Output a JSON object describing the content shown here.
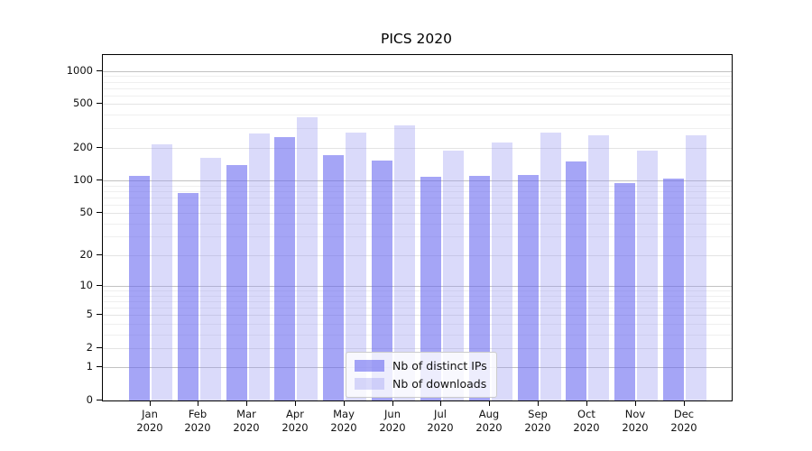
{
  "title": "PICS 2020",
  "axes": {
    "y_tick_labels": [
      "0",
      "1",
      "2",
      "5",
      "10",
      "20",
      "50",
      "100",
      "200",
      "500",
      "1000"
    ],
    "x_tick_labels": [
      "Jan 2020",
      "Feb 2020",
      "Mar 2020",
      "Apr 2020",
      "May 2020",
      "Jun 2020",
      "Jul 2020",
      "Aug 2020",
      "Sep 2020",
      "Oct 2020",
      "Nov 2020",
      "Dec 2020"
    ]
  },
  "legend": {
    "items": [
      "Nb of distinct IPs",
      "Nb of downloads"
    ]
  },
  "colors": {
    "bar_dark_apparent": "#a5a5f4",
    "bar_light_apparent": "#dadaf9",
    "grid_strong": "#c2c2c2",
    "grid_minor": "#efefef",
    "axis": "#000000"
  },
  "chart_data": {
    "type": "bar",
    "title": "PICS 2020",
    "categories": [
      "Jan 2020",
      "Feb 2020",
      "Mar 2020",
      "Apr 2020",
      "May 2020",
      "Jun 2020",
      "Jul 2020",
      "Aug 2020",
      "Sep 2020",
      "Oct 2020",
      "Nov 2020",
      "Dec 2020"
    ],
    "series": [
      {
        "name": "Nb of distinct IPs",
        "color": "#6464f0",
        "alpha": 0.58,
        "values": [
          110,
          76,
          139,
          248,
          170,
          152,
          108,
          110,
          112,
          150,
          94,
          104
        ]
      },
      {
        "name": "Nb of downloads",
        "color": "#9696f0",
        "alpha": 0.35,
        "values": [
          214,
          162,
          268,
          376,
          274,
          318,
          188,
          222,
          273,
          258,
          188,
          258
        ]
      }
    ],
    "y_scale": "log1p",
    "y_ticks": [
      0,
      1,
      2,
      5,
      10,
      20,
      50,
      100,
      200,
      500,
      1000
    ],
    "y_axis_max": 1400,
    "grid": true,
    "legend_position": "lower center"
  }
}
